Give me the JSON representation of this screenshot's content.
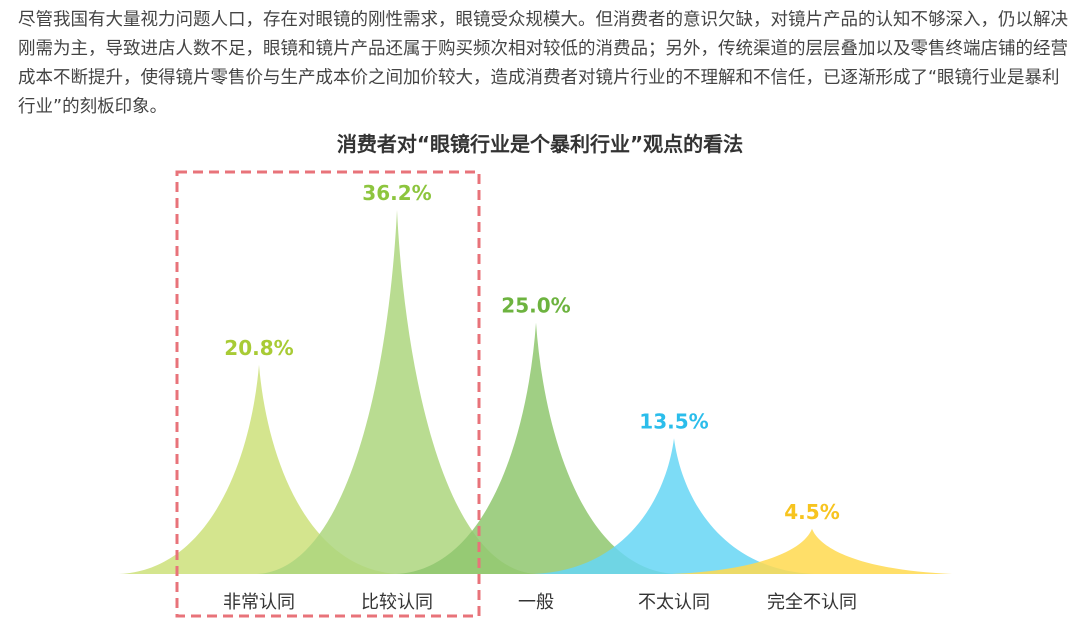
{
  "intro_text": "尽管我国有大量视力问题人口，存在对眼镜的刚性需求，眼镜受众规模大。但消费者的意识欠缺，对镜片产品的认知不够深入，仍以解决刚需为主，导致进店人数不足，眼镜和镜片产品还属于购买频次相对较低的消费品；另外，传统渠道的层层叠加以及零售终端店铺的经营成本不断提升，使得镜片零售价与生产成本价之间加价较大，造成消费者对镜片行业的不理解和不信任，已逐渐形成了“眼镜行业是暴利行业”的刻板印象。",
  "chart_data": {
    "type": "bar",
    "title": "消费者对“眼镜行业是个暴利行业”观点的看法",
    "categories": [
      "非常认同",
      "比较认同",
      "一般",
      "不太认同",
      "完全不认同"
    ],
    "values": [
      20.8,
      36.2,
      25.0,
      13.5,
      4.5
    ],
    "value_labels": [
      "20.8%",
      "36.2%",
      "25.0%",
      "13.5%",
      "4.5%"
    ],
    "colors": [
      "#CCE07A",
      "#ADD67E",
      "#8FC76E",
      "#66D6F4",
      "#FFD94F"
    ],
    "label_colors": [
      "#A8CB35",
      "#8DC53E",
      "#6DB33F",
      "#2BBDEB",
      "#F7C41F"
    ],
    "highlight": [
      "非常认同",
      "比较认同"
    ],
    "highlight_color": "#E8737A",
    "ylim": [
      0,
      36.2
    ],
    "grid": false
  }
}
